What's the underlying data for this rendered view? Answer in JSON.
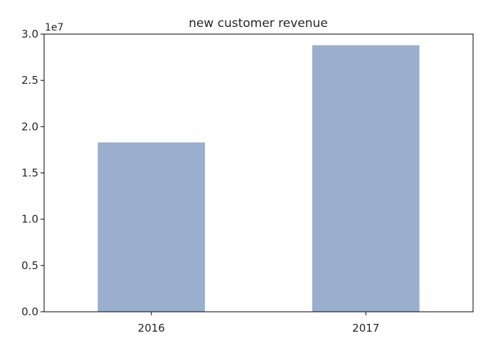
{
  "chart_data": {
    "type": "bar",
    "title": "new customer revenue",
    "xlabel": "",
    "ylabel": "",
    "categories": [
      "2016",
      "2017"
    ],
    "values": [
      18300000,
      28800000
    ],
    "ylim": [
      0,
      30000000
    ],
    "y_scale_offset_label": "1e7",
    "yticks": [
      0,
      5000000,
      10000000,
      15000000,
      20000000,
      25000000,
      30000000
    ],
    "ytick_labels": [
      "0.0",
      "0.5",
      "1.0",
      "1.5",
      "2.0",
      "2.5",
      "3.0"
    ],
    "grid": false,
    "legend": "none",
    "bar_color": "#9aafce",
    "axis_color": "#000000"
  }
}
